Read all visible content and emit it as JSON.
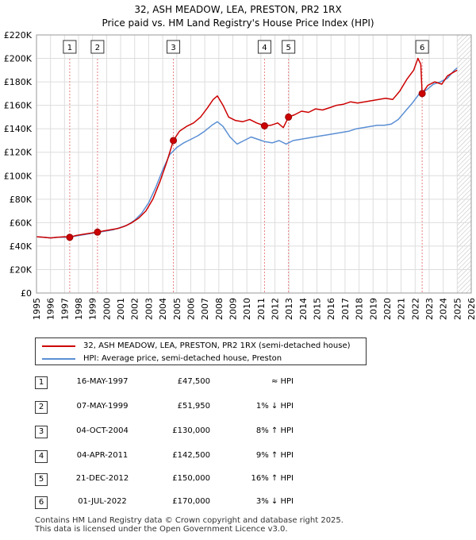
{
  "header": {
    "title": "32, ASH MEADOW, LEA, PRESTON, PR2 1RX",
    "subtitle": "Price paid vs. HM Land Registry's House Price Index (HPI)"
  },
  "chart_data": {
    "type": "line",
    "xlabel": "",
    "ylabel": "",
    "xlim": [
      1995,
      2026
    ],
    "ylim": [
      0,
      220000
    ],
    "x_ticks": [
      "1995",
      "1996",
      "1997",
      "1998",
      "1999",
      "2000",
      "2001",
      "2002",
      "2003",
      "2004",
      "2005",
      "2006",
      "2007",
      "2008",
      "2009",
      "2010",
      "2011",
      "2012",
      "2013",
      "2014",
      "2015",
      "2016",
      "2017",
      "2018",
      "2019",
      "2020",
      "2021",
      "2022",
      "2023",
      "2024",
      "2025",
      "2026"
    ],
    "y_ticks": [
      {
        "value": 0,
        "label": "£0"
      },
      {
        "value": 20000,
        "label": "£20K"
      },
      {
        "value": 40000,
        "label": "£40K"
      },
      {
        "value": 60000,
        "label": "£60K"
      },
      {
        "value": 80000,
        "label": "£80K"
      },
      {
        "value": 100000,
        "label": "£100K"
      },
      {
        "value": 120000,
        "label": "£120K"
      },
      {
        "value": 140000,
        "label": "£140K"
      },
      {
        "value": 160000,
        "label": "£160K"
      },
      {
        "value": 180000,
        "label": "£180K"
      },
      {
        "value": 200000,
        "label": "£200K"
      },
      {
        "value": 220000,
        "label": "£220K"
      }
    ],
    "grid": true,
    "hatched_after": 2025.0,
    "series": [
      {
        "name": "32, ASH MEADOW, LEA, PRESTON, PR2 1RX (semi-detached house)",
        "color": "#cc0000",
        "x": [
          1995.0,
          1995.5,
          1996.0,
          1996.5,
          1997.0,
          1997.37,
          1997.8,
          1998.3,
          1998.8,
          1999.35,
          1999.8,
          2000.3,
          2000.8,
          2001.3,
          2001.8,
          2002.3,
          2002.8,
          2003.3,
          2003.8,
          2004.3,
          2004.76,
          2005.2,
          2005.7,
          2006.2,
          2006.7,
          2007.2,
          2007.6,
          2007.9,
          2008.3,
          2008.7,
          2009.2,
          2009.7,
          2010.2,
          2010.7,
          2011.26,
          2011.7,
          2012.2,
          2012.6,
          2012.97,
          2013.4,
          2013.9,
          2014.4,
          2014.9,
          2015.4,
          2015.9,
          2016.4,
          2016.9,
          2017.4,
          2017.9,
          2018.4,
          2018.9,
          2019.4,
          2019.9,
          2020.4,
          2020.9,
          2021.4,
          2021.9,
          2022.2,
          2022.4,
          2022.5,
          2022.9,
          2023.4,
          2023.9,
          2024.3,
          2024.7,
          2025.0
        ],
        "values": [
          48000,
          47500,
          47000,
          47500,
          48000,
          47500,
          49000,
          50000,
          51000,
          51950,
          53000,
          54000,
          55000,
          57000,
          60000,
          64000,
          70000,
          80000,
          95000,
          112000,
          130000,
          138000,
          142000,
          145000,
          150000,
          158000,
          165000,
          168000,
          160000,
          150000,
          147000,
          146000,
          148000,
          145000,
          142500,
          143000,
          145000,
          141000,
          150000,
          152000,
          155000,
          154000,
          157000,
          156000,
          158000,
          160000,
          161000,
          163000,
          162000,
          163000,
          164000,
          165000,
          166000,
          165000,
          172000,
          182000,
          190000,
          200000,
          195000,
          170000,
          177000,
          180000,
          178000,
          185000,
          188000,
          190000
        ]
      },
      {
        "name": "HPI: Average price, semi-detached house, Preston",
        "color": "#5b8fd4",
        "x": [
          1995.0,
          1995.5,
          1996.0,
          1996.5,
          1997.0,
          1997.5,
          1998.0,
          1998.5,
          1999.0,
          1999.5,
          2000.0,
          2000.5,
          2001.0,
          2001.5,
          2002.0,
          2002.5,
          2003.0,
          2003.5,
          2004.0,
          2004.5,
          2005.0,
          2005.5,
          2006.0,
          2006.5,
          2007.0,
          2007.5,
          2007.9,
          2008.3,
          2008.8,
          2009.3,
          2009.8,
          2010.3,
          2010.8,
          2011.3,
          2011.8,
          2012.3,
          2012.8,
          2013.3,
          2013.8,
          2014.3,
          2014.8,
          2015.3,
          2015.8,
          2016.3,
          2016.8,
          2017.3,
          2017.8,
          2018.3,
          2018.8,
          2019.3,
          2019.8,
          2020.3,
          2020.8,
          2021.3,
          2021.8,
          2022.3,
          2022.8,
          2023.3,
          2023.8,
          2024.3,
          2024.8,
          2025.0
        ],
        "values": [
          48000,
          47500,
          47000,
          47500,
          47500,
          48000,
          49000,
          50000,
          51000,
          52000,
          53000,
          54000,
          56000,
          58000,
          62000,
          68000,
          77000,
          90000,
          105000,
          118000,
          124000,
          128000,
          131000,
          134000,
          138000,
          143000,
          146000,
          142000,
          133000,
          127000,
          130000,
          133000,
          131000,
          129000,
          128000,
          130000,
          127000,
          130000,
          131000,
          132000,
          133000,
          134000,
          135000,
          136000,
          137000,
          138000,
          140000,
          141000,
          142000,
          143000,
          143000,
          144000,
          148000,
          155000,
          162000,
          170000,
          173000,
          178000,
          180000,
          183000,
          190000,
          192000
        ]
      }
    ],
    "markers": [
      {
        "label": "1",
        "x": 1997.37,
        "y": 47500
      },
      {
        "label": "2",
        "x": 1999.35,
        "y": 51950
      },
      {
        "label": "3",
        "x": 2004.76,
        "y": 130000
      },
      {
        "label": "4",
        "x": 2011.26,
        "y": 142500
      },
      {
        "label": "5",
        "x": 2012.97,
        "y": 150000
      },
      {
        "label": "6",
        "x": 2022.5,
        "y": 170000
      }
    ]
  },
  "legend": {
    "items": [
      {
        "label": "32, ASH MEADOW, LEA, PRESTON, PR2 1RX (semi-detached house)",
        "color": "#cc0000"
      },
      {
        "label": "HPI: Average price, semi-detached house, Preston",
        "color": "#5b8fd4"
      }
    ]
  },
  "sales": [
    {
      "num": "1",
      "date": "16-MAY-1997",
      "price": "£47,500",
      "hpi": "≈ HPI"
    },
    {
      "num": "2",
      "date": "07-MAY-1999",
      "price": "£51,950",
      "hpi": "1% ↓ HPI"
    },
    {
      "num": "3",
      "date": "04-OCT-2004",
      "price": "£130,000",
      "hpi": "8% ↑ HPI"
    },
    {
      "num": "4",
      "date": "04-APR-2011",
      "price": "£142,500",
      "hpi": "9% ↑ HPI"
    },
    {
      "num": "5",
      "date": "21-DEC-2012",
      "price": "£150,000",
      "hpi": "16% ↑ HPI"
    },
    {
      "num": "6",
      "date": "01-JUL-2022",
      "price": "£170,000",
      "hpi": "3% ↓ HPI"
    }
  ],
  "footer": {
    "line1": "Contains HM Land Registry data © Crown copyright and database right 2025.",
    "line2": "This data is licensed under the Open Government Licence v3.0."
  }
}
